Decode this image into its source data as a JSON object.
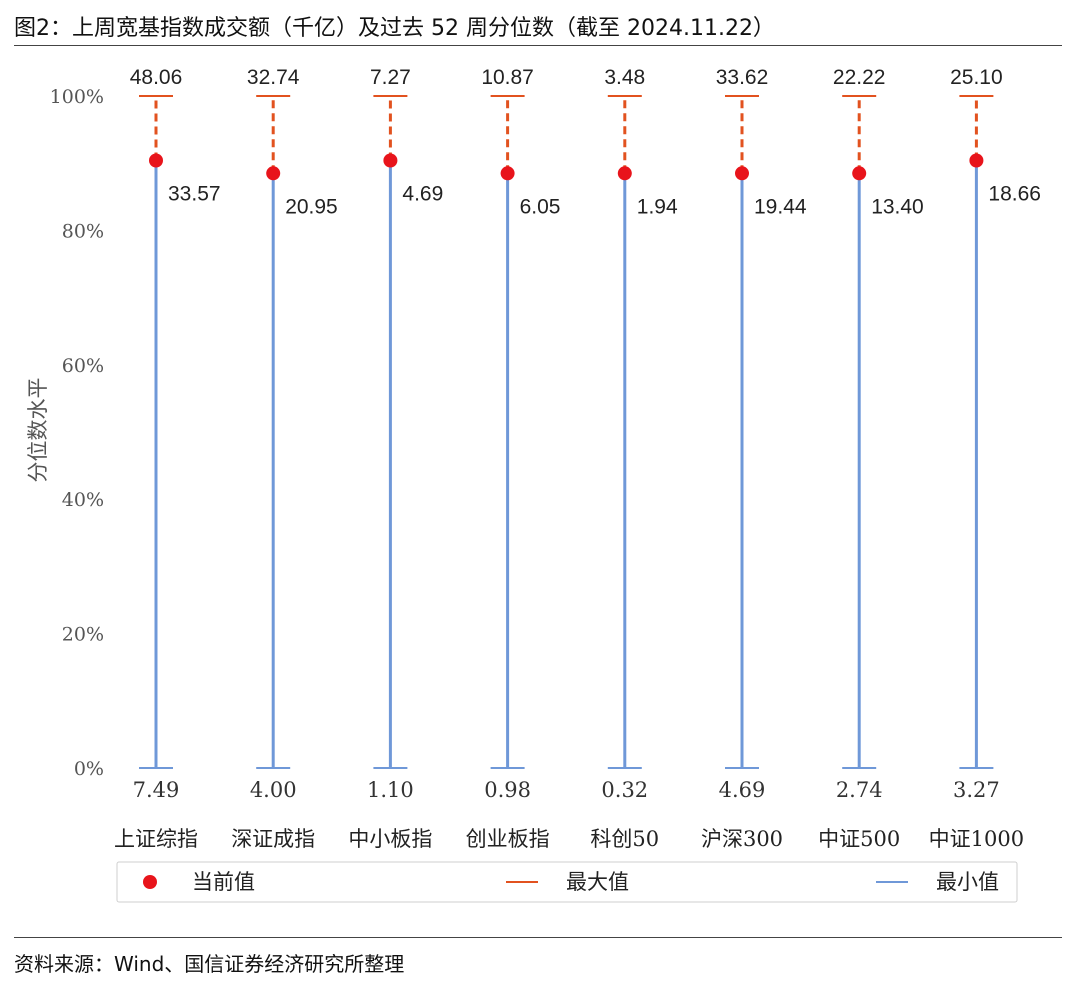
{
  "figure_title": "图2：上周宽基指数成交额（千亿）及过去 52 周分位数（截至 2024.11.22）",
  "source_note": "资料来源：Wind、国信证券经济研究所整理",
  "colors": {
    "current_marker": "#e8141b",
    "max_line": "#e2521f",
    "min_line": "#6f98d8",
    "axis_text": "#555555",
    "label_text": "#222222"
  },
  "chart_data": {
    "type": "range-dot",
    "ylabel": "分位数水平",
    "ylim": [
      0,
      100
    ],
    "yticks": [
      "0%",
      "20%",
      "40%",
      "60%",
      "80%",
      "100%"
    ],
    "categories": [
      "上证综指",
      "深证成指",
      "中小板指",
      "创业板指",
      "科创50",
      "沪深300",
      "中证500",
      "中证1000"
    ],
    "series": [
      {
        "name": "当前值",
        "percentile": [
          90.4,
          88.5,
          90.4,
          88.5,
          88.5,
          88.5,
          88.5,
          90.4
        ],
        "values": [
          "33.57",
          "20.95",
          "4.69",
          "6.05",
          "1.94",
          "19.44",
          "13.40",
          "18.66"
        ]
      },
      {
        "name": "最大值",
        "percentile": [
          100,
          100,
          100,
          100,
          100,
          100,
          100,
          100
        ],
        "values": [
          "48.06",
          "32.74",
          "7.27",
          "10.87",
          "3.48",
          "33.62",
          "22.22",
          "25.10"
        ]
      },
      {
        "name": "最小值",
        "percentile": [
          0,
          0,
          0,
          0,
          0,
          0,
          0,
          0
        ],
        "values": [
          "7.49",
          "4.00",
          "1.10",
          "0.98",
          "0.32",
          "4.69",
          "2.74",
          "3.27"
        ]
      }
    ],
    "legend_position": "bottom",
    "grid": false
  }
}
